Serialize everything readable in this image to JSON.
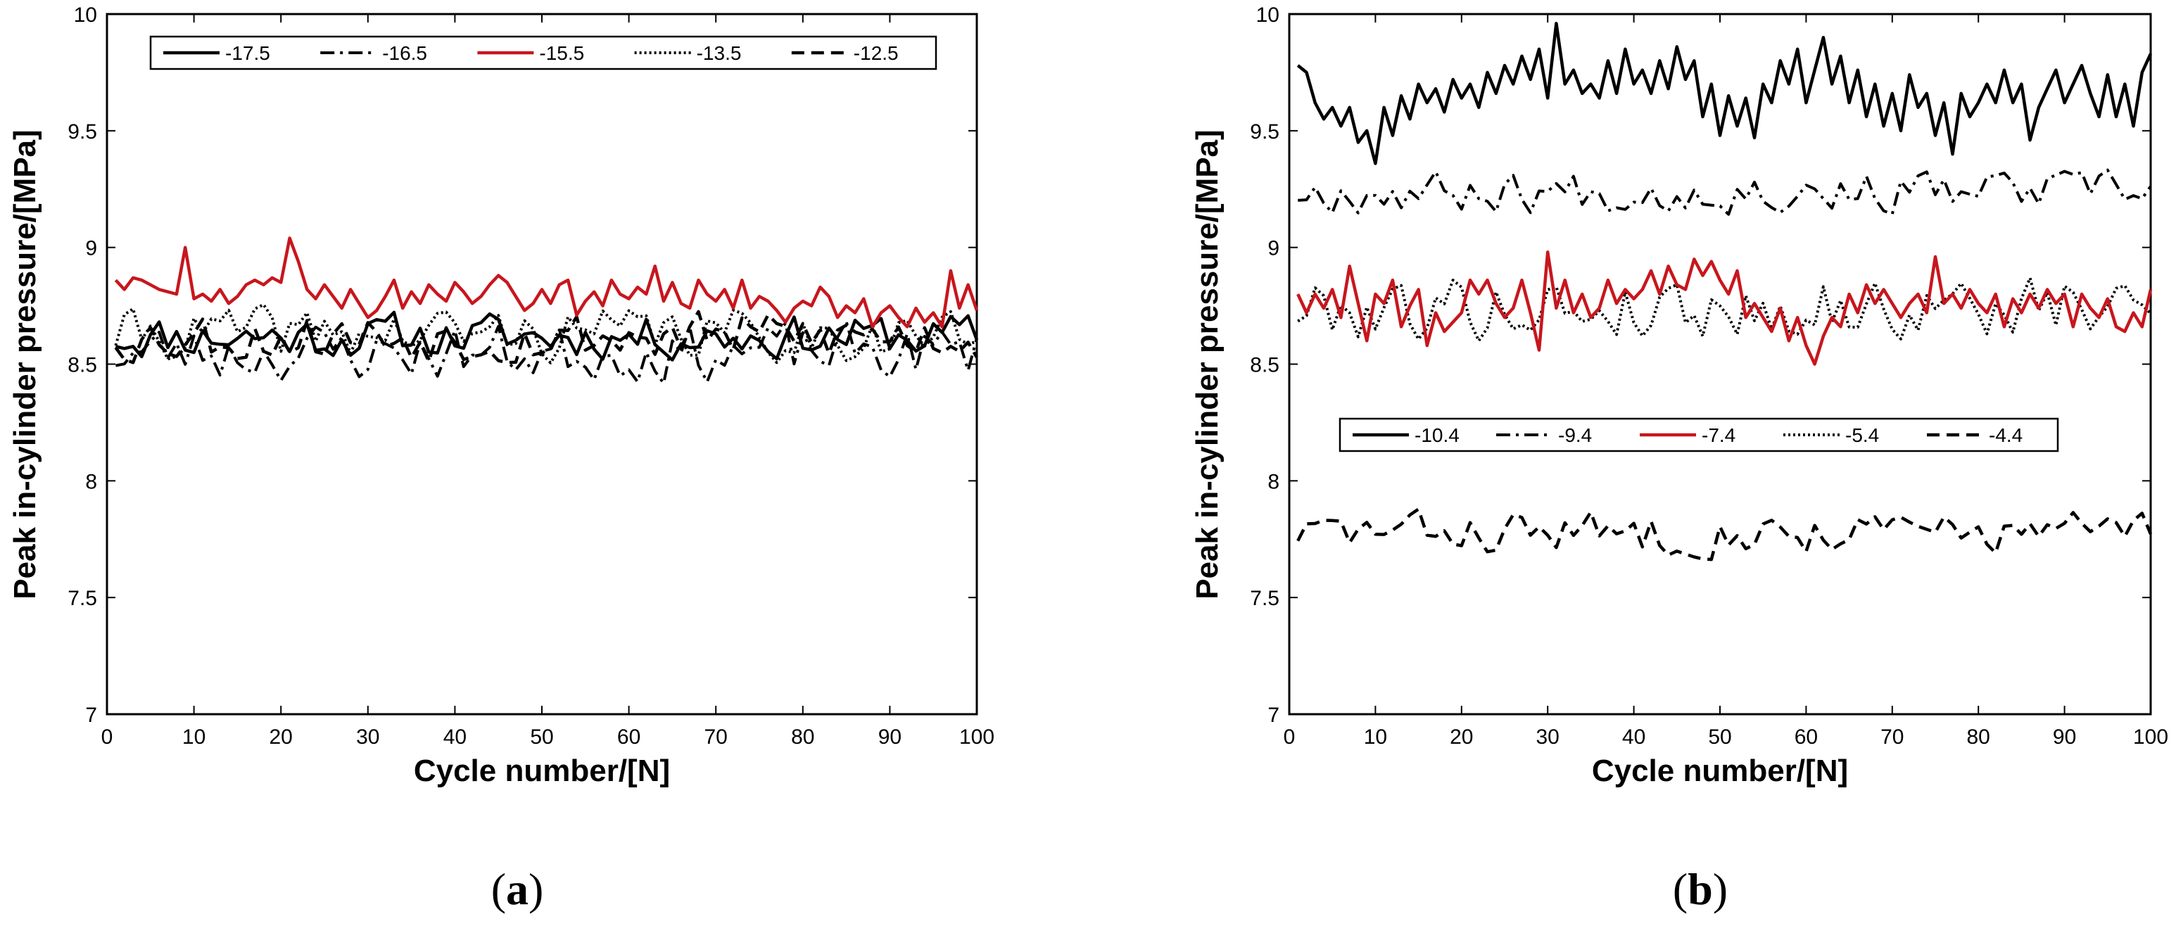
{
  "colors": {
    "black": "#000000",
    "red": "#c8161d",
    "frame": "#000000",
    "background": "#ffffff"
  },
  "chart_data": [
    {
      "type": "line",
      "panel_label": {
        "open": "(",
        "letter": "a",
        "close": ")"
      },
      "xlabel": "Cycle number/[N]",
      "ylabel": "Peak in-cylinder pressure/[MPa]",
      "xlim": [
        0,
        100
      ],
      "ylim": [
        7,
        10
      ],
      "xticks": [
        0,
        10,
        20,
        30,
        40,
        50,
        60,
        70,
        80,
        90,
        100
      ],
      "yticks": [
        7,
        7.5,
        8,
        8.5,
        9,
        9.5,
        10
      ],
      "ytick_labels": [
        "7",
        "7.5",
        "8",
        "8.5",
        "9",
        "9.5",
        "10"
      ],
      "legend_location": "top",
      "x_start": 1,
      "series": [
        {
          "name": "-17.5",
          "style": "solid",
          "color": "black",
          "base": 8.62,
          "amp": 0.085,
          "seed": 11,
          "values": []
        },
        {
          "name": "-16.5",
          "style": "dashdot",
          "color": "black",
          "base": 8.55,
          "amp": 0.11,
          "seed": 23,
          "values": []
        },
        {
          "name": "-15.5",
          "style": "solid",
          "color": "red",
          "base": 8.79,
          "amp": 0.07,
          "seed": 37,
          "values": [
            8.86,
            8.82,
            8.87,
            8.86,
            8.84,
            8.82,
            8.81,
            8.8,
            9.0,
            8.78,
            8.8,
            8.77,
            8.82,
            8.76,
            8.79,
            8.84,
            8.86,
            8.84,
            8.87,
            8.85,
            9.04,
            8.94,
            8.82,
            8.78,
            8.84,
            8.79,
            8.74,
            8.82,
            8.76,
            8.7,
            8.73,
            8.79,
            8.86,
            8.74,
            8.81,
            8.76,
            8.84,
            8.8,
            8.77,
            8.85,
            8.81,
            8.76,
            8.79,
            8.84,
            8.88,
            8.85,
            8.79,
            8.73,
            8.76,
            8.82,
            8.76,
            8.84,
            8.86,
            8.71,
            8.77,
            8.81,
            8.75,
            8.86,
            8.8,
            8.78,
            8.83,
            8.8,
            8.92,
            8.77,
            8.85,
            8.76,
            8.74,
            8.86,
            8.8,
            8.77,
            8.82,
            8.74,
            8.86,
            8.74,
            8.79,
            8.77,
            8.73,
            8.68,
            8.74,
            8.77,
            8.75,
            8.83,
            8.79,
            8.7,
            8.75,
            8.72,
            8.78,
            8.66,
            8.72,
            8.75,
            8.7,
            8.66,
            8.74,
            8.68,
            8.72,
            8.66,
            8.9,
            8.74,
            8.84,
            8.73
          ]
        },
        {
          "name": "-13.5",
          "style": "dotted",
          "color": "black",
          "base": 8.63,
          "amp": 0.1,
          "seed": 41,
          "values": []
        },
        {
          "name": "-12.5",
          "style": "dashed",
          "color": "black",
          "base": 8.62,
          "amp": 0.1,
          "seed": 53,
          "values": []
        }
      ]
    },
    {
      "type": "line",
      "panel_label": {
        "open": "(",
        "letter": "b",
        "close": ")"
      },
      "xlabel": "Cycle number/[N]",
      "ylabel": "Peak in-cylinder pressure/[MPa]",
      "xlim": [
        0,
        100
      ],
      "ylim": [
        7,
        10
      ],
      "xticks": [
        0,
        10,
        20,
        30,
        40,
        50,
        60,
        70,
        80,
        90,
        100
      ],
      "yticks": [
        7,
        7.5,
        8,
        8.5,
        9,
        9.5,
        10
      ],
      "ytick_labels": [
        "7",
        "7.5",
        "8",
        "8.5",
        "9",
        "9.5",
        "10"
      ],
      "legend_location": "center",
      "x_start": 1,
      "series": [
        {
          "name": "-10.4",
          "style": "solid",
          "color": "black",
          "base": 9.66,
          "amp": 0.12,
          "seed": 61,
          "values": [
            9.78,
            9.75,
            9.62,
            9.55,
            9.6,
            9.52,
            9.6,
            9.45,
            9.5,
            9.36,
            9.6,
            9.48,
            9.65,
            9.55,
            9.7,
            9.62,
            9.68,
            9.58,
            9.72,
            9.64,
            9.7,
            9.6,
            9.75,
            9.66,
            9.78,
            9.7,
            9.82,
            9.72,
            9.85,
            9.64,
            9.96,
            9.7,
            9.76,
            9.66,
            9.7,
            9.64,
            9.8,
            9.66,
            9.85,
            9.7,
            9.76,
            9.66,
            9.8,
            9.68,
            9.86,
            9.72,
            9.8,
            9.56,
            9.7,
            9.48,
            9.65,
            9.52,
            9.64,
            9.47,
            9.7,
            9.62,
            9.8,
            9.7,
            9.85,
            9.62,
            9.76,
            9.9,
            9.7,
            9.82,
            9.62,
            9.76,
            9.56,
            9.7,
            9.52,
            9.66,
            9.5,
            9.74,
            9.6,
            9.66,
            9.48,
            9.62,
            9.4,
            9.66,
            9.56,
            9.62,
            9.7,
            9.62,
            9.76,
            9.62,
            9.7,
            9.46,
            9.6,
            9.68,
            9.76,
            9.62,
            9.7,
            9.78,
            9.66,
            9.56,
            9.74,
            9.56,
            9.7,
            9.52,
            9.75,
            9.83
          ]
        },
        {
          "name": "-9.4",
          "style": "dashdot",
          "color": "black",
          "base": 9.24,
          "amp": 0.08,
          "seed": 67,
          "values": []
        },
        {
          "name": "-7.4",
          "style": "solid",
          "color": "red",
          "base": 8.77,
          "amp": 0.09,
          "seed": 71,
          "values": [
            8.8,
            8.72,
            8.8,
            8.74,
            8.82,
            8.7,
            8.92,
            8.76,
            8.6,
            8.8,
            8.76,
            8.86,
            8.66,
            8.75,
            8.82,
            8.58,
            8.72,
            8.64,
            8.68,
            8.72,
            8.86,
            8.8,
            8.86,
            8.76,
            8.7,
            8.74,
            8.86,
            8.72,
            8.56,
            8.98,
            8.74,
            8.86,
            8.72,
            8.8,
            8.7,
            8.74,
            8.86,
            8.76,
            8.82,
            8.78,
            8.82,
            8.9,
            8.8,
            8.92,
            8.84,
            8.82,
            8.95,
            8.88,
            8.94,
            8.86,
            8.8,
            8.9,
            8.7,
            8.76,
            8.7,
            8.64,
            8.74,
            8.6,
            8.7,
            8.58,
            8.5,
            8.62,
            8.7,
            8.66,
            8.8,
            8.72,
            8.84,
            8.76,
            8.82,
            8.76,
            8.7,
            8.76,
            8.8,
            8.72,
            8.96,
            8.76,
            8.8,
            8.74,
            8.82,
            8.76,
            8.72,
            8.8,
            8.66,
            8.78,
            8.72,
            8.8,
            8.74,
            8.82,
            8.76,
            8.8,
            8.66,
            8.8,
            8.74,
            8.7,
            8.78,
            8.66,
            8.64,
            8.72,
            8.66,
            8.82
          ]
        },
        {
          "name": "-5.4",
          "style": "dotted",
          "color": "black",
          "base": 8.74,
          "amp": 0.12,
          "seed": 79,
          "values": []
        },
        {
          "name": "-4.4",
          "style": "dashed",
          "color": "black",
          "base": 7.78,
          "amp": 0.08,
          "seed": 83,
          "values": []
        }
      ]
    }
  ]
}
